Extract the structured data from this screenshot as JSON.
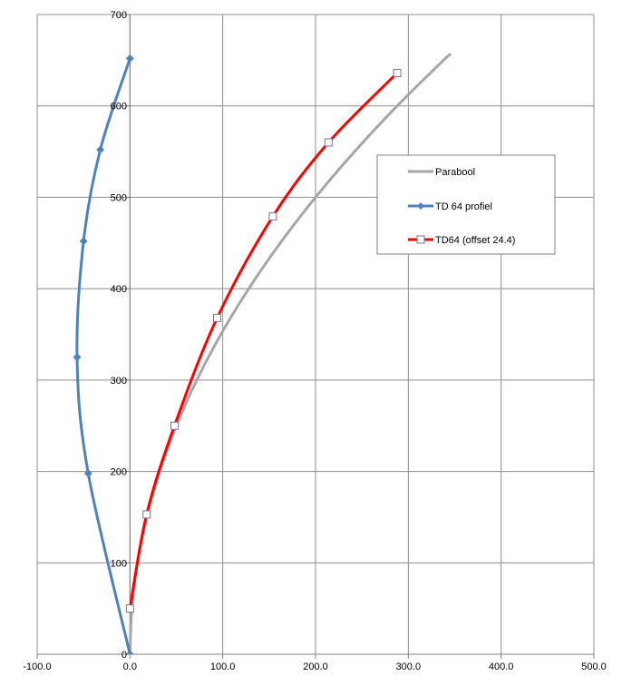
{
  "chart_data": {
    "type": "scatter",
    "title": "",
    "xlabel": "",
    "ylabel": "",
    "xlim": [
      -100,
      500
    ],
    "ylim": [
      0,
      700
    ],
    "x_ticks": [
      -100,
      0,
      100,
      200,
      300,
      400,
      500
    ],
    "x_tick_labels": [
      "-100.0",
      "0.0",
      "100.0",
      "200.0",
      "300.0",
      "400.0",
      "500.0"
    ],
    "y_ticks": [
      0,
      100,
      200,
      300,
      400,
      500,
      600,
      700
    ],
    "y_tick_labels": [
      "0",
      "100",
      "200",
      "300",
      "400",
      "500",
      "600",
      "700"
    ],
    "grid": true,
    "legend_position": "right",
    "series": [
      {
        "name": "Parabool",
        "color": "#a6a6a6",
        "marker": "none",
        "smooth": true,
        "x": [
          0,
          2,
          8,
          18,
          32,
          50,
          72,
          98,
          128,
          162,
          200,
          242,
          288,
          338,
          345
        ],
        "y": [
          0,
          50,
          100,
          150,
          200,
          250,
          300,
          350,
          400,
          450,
          500,
          550,
          600,
          650,
          656
        ]
      },
      {
        "name": "TD 64 profiel",
        "color": "#4f81bd",
        "marker": "diamond",
        "smooth": true,
        "x": [
          0,
          -45,
          -57,
          -50,
          -32,
          0
        ],
        "y": [
          0,
          198,
          325,
          452,
          552,
          652
        ]
      },
      {
        "name": "TD64 (offset 24.4)",
        "color": "#ff0000",
        "marker": "square",
        "marker_fill": "#ffffff",
        "marker_stroke": "#7f6fa0",
        "smooth": true,
        "x": [
          0,
          18,
          48,
          94,
          154,
          214,
          288
        ],
        "y": [
          50,
          153,
          250,
          368,
          479,
          560,
          636
        ]
      }
    ]
  }
}
